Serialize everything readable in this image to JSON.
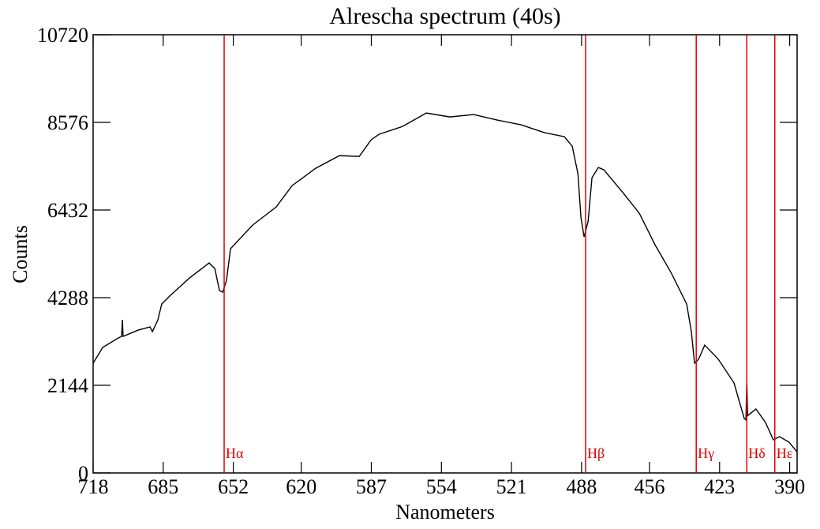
{
  "chart_data": {
    "type": "line",
    "title": "Alrescha spectrum (40s)",
    "x_label": "Nanometers",
    "y_label": "Counts",
    "xlim": [
      718,
      386.5
    ],
    "ylim": [
      0,
      10720
    ],
    "xticks": [
      718,
      685,
      652,
      620,
      587,
      554,
      521,
      488,
      456,
      423,
      390
    ],
    "yticks": [
      0,
      2144,
      4288,
      6432,
      8576,
      10720
    ],
    "series": [
      {
        "color": "#000000",
        "x": [
          718,
          713.5,
          706.1,
          704.6,
          704.2,
          703.9,
          696.8,
          691.2,
          690.1,
          687.5,
          685.7,
          682,
          672.6,
          663.4,
          660.7,
          658.5,
          657,
          655.2,
          653.3,
          642.9,
          631.8,
          624.3,
          613.2,
          602,
          592.7,
          587.1,
          583.4,
          572.3,
          561.1,
          550,
          538.8,
          527.7,
          516.5,
          505.4,
          496.1,
          492.4,
          489.7,
          488.3,
          486.8,
          484.9,
          483.1,
          480.1,
          477.5,
          468.2,
          460.8,
          453.4,
          445.9,
          438.5,
          436.3,
          434.8,
          432.9,
          430,
          423.6,
          416.2,
          411.4,
          410.6,
          410.2,
          409.8,
          405.9,
          401.4,
          397.7,
          394.8,
          390.3,
          386.6
        ],
        "values": [
          2684,
          3070,
          3302,
          3340,
          3746,
          3340,
          3495,
          3572,
          3456,
          3746,
          4132,
          4325,
          4770,
          5136,
          5001,
          4461,
          4422,
          4712,
          5484,
          6063,
          6507,
          7029,
          7454,
          7762,
          7743,
          8149,
          8284,
          8477,
          8805,
          8709,
          8767,
          8632,
          8516,
          8323,
          8226,
          7994,
          7319,
          6256,
          5774,
          6160,
          7222,
          7473,
          7415,
          6836,
          6353,
          5580,
          4905,
          4132,
          3456,
          2684,
          2781,
          3128,
          2781,
          2201,
          1332,
          1300,
          2259,
          1400,
          1564,
          1236,
          811,
          888,
          753,
          521
        ]
      }
    ],
    "lines": [
      {
        "label": "Hα",
        "x": 656.3,
        "color": "#e00000"
      },
      {
        "label": "Hβ",
        "x": 486.1,
        "color": "#e00000"
      },
      {
        "label": "Hγ",
        "x": 434.0,
        "color": "#e00000"
      },
      {
        "label": "Hδ",
        "x": 410.2,
        "color": "#e00000"
      },
      {
        "label": "Hε",
        "x": 397.0,
        "color": "#e00000"
      }
    ]
  }
}
